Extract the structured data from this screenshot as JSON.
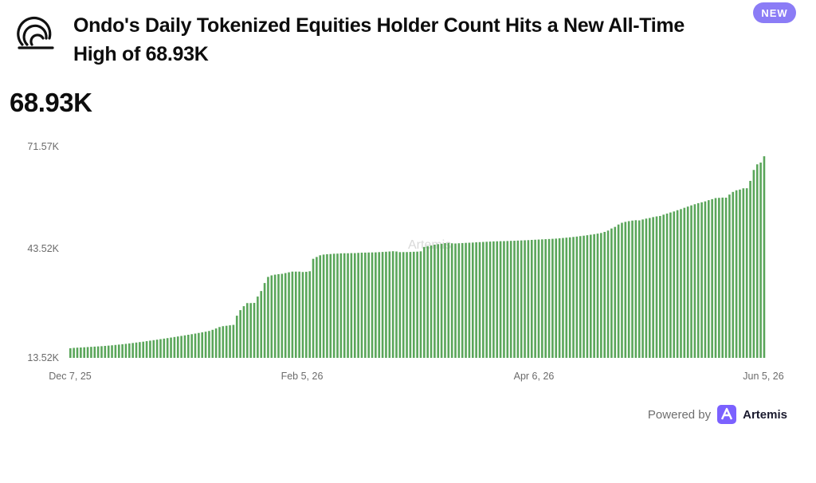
{
  "header": {
    "title": "Ondo's Daily Tokenized Equities Holder Count Hits a New All-Time High of 68.93K",
    "badge": "NEW",
    "logo_icon": "ondo-logo-icon"
  },
  "headline_value": "68.93K",
  "footer": {
    "powered_by": "Powered by",
    "brand": "Artemis",
    "brand_icon": "artemis-logo-icon"
  },
  "watermark": "Artemis",
  "colors": {
    "bar": "#5aa65a",
    "badge": "#8b7cf6",
    "brand": "#7b61ff"
  },
  "chart_data": {
    "type": "bar",
    "title": "",
    "xlabel": "",
    "ylabel": "",
    "ylim": [
      13520,
      71570
    ],
    "y_ticks": [
      {
        "value": 13520,
        "label": "13.52K"
      },
      {
        "value": 43520,
        "label": "43.52K"
      },
      {
        "value": 71570,
        "label": "71.57K"
      }
    ],
    "x_tick_labels": [
      "Dec 7, 25",
      "Feb 5, 26",
      "Apr 6, 26",
      "Jun 5, 26"
    ],
    "x_start": "Dec 7, 25",
    "x_end": "Jun 5, 26",
    "grid": false,
    "series": [
      {
        "values": [
          16170,
          16270,
          16330,
          16370,
          16430,
          16490,
          16550,
          16610,
          16670,
          16730,
          16810,
          16890,
          16970,
          17070,
          17170,
          17270,
          17370,
          17490,
          17610,
          17730,
          17850,
          17970,
          18110,
          18250,
          18390,
          18530,
          18670,
          18810,
          18950,
          19100,
          19250,
          19400,
          19550,
          19710,
          19870,
          20030,
          20200,
          20370,
          20540,
          20720,
          20910,
          21230,
          21600,
          22000,
          22230,
          22350,
          22470,
          22590,
          25110,
          26640,
          27730,
          28580,
          28580,
          28630,
          30370,
          31890,
          34090,
          35770,
          36190,
          36390,
          36520,
          36620,
          36830,
          37040,
          37230,
          37230,
          37230,
          37120,
          37180,
          37330,
          40750,
          41250,
          41710,
          41910,
          42010,
          42060,
          42140,
          42170,
          42250,
          42270,
          42270,
          42310,
          42310,
          42380,
          42430,
          42450,
          42480,
          42500,
          42520,
          42580,
          42630,
          42690,
          42760,
          42830,
          42760,
          42580,
          42590,
          42600,
          42630,
          42680,
          42720,
          42800,
          44000,
          44220,
          44400,
          44640,
          44780,
          44880,
          45050,
          45110,
          45010,
          44960,
          45020,
          45080,
          45130,
          45170,
          45210,
          45280,
          45330,
          45380,
          45430,
          45480,
          45530,
          45560,
          45590,
          45610,
          45640,
          45680,
          45710,
          45760,
          45800,
          45840,
          45880,
          45940,
          45990,
          46040,
          46090,
          46140,
          46190,
          46240,
          46300,
          46380,
          46470,
          46560,
          46650,
          46750,
          46860,
          46980,
          47100,
          47230,
          47370,
          47510,
          47670,
          47840,
          48140,
          48510,
          49080,
          49520,
          50170,
          50650,
          50900,
          51100,
          51250,
          51350,
          51300,
          51560,
          51800,
          51960,
          52210,
          52400,
          52520,
          52880,
          53180,
          53480,
          53760,
          54110,
          54410,
          54770,
          55100,
          55430,
          55740,
          56040,
          56280,
          56530,
          56860,
          57140,
          57440,
          57500,
          57570,
          57550,
          58400,
          59130,
          59580,
          59780,
          60120,
          60140,
          62160,
          65170,
          66710,
          67200,
          68930
        ]
      }
    ]
  }
}
